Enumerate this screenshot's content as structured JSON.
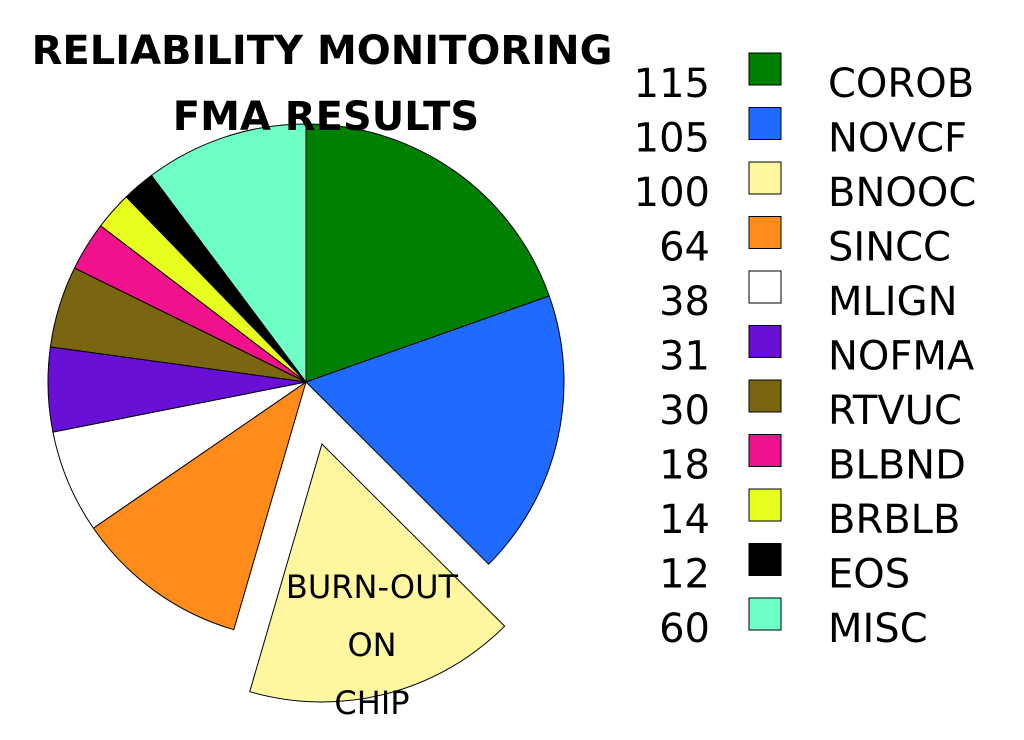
{
  "chart_data": {
    "type": "pie",
    "title_lines": [
      "RELIABILITY MONITORING",
      "FMA RESULTS"
    ],
    "slices": [
      {
        "label": "COROB",
        "value": 115,
        "color": "#008000"
      },
      {
        "label": "NOVCF",
        "value": 105,
        "color": "#1f6bff"
      },
      {
        "label": "BNOOC",
        "value": 100,
        "color": "#fff7a0",
        "exploded": true
      },
      {
        "label": "SINCC",
        "value": 64,
        "color": "#ff8c1a"
      },
      {
        "label": "MLIGN",
        "value": 38,
        "color": "#ffffff"
      },
      {
        "label": "NOFMA",
        "value": 31,
        "color": "#6a0fd6"
      },
      {
        "label": "RTVUC",
        "value": 30,
        "color": "#7a6610"
      },
      {
        "label": "BLBND",
        "value": 18,
        "color": "#f0128c"
      },
      {
        "label": "BRBLB",
        "value": 14,
        "color": "#e6ff1f"
      },
      {
        "label": "EOS",
        "value": 12,
        "color": "#000000"
      },
      {
        "label": "MISC",
        "value": 60,
        "color": "#6dffc6"
      }
    ],
    "annotation_lines": [
      "BURN-OUT",
      "ON",
      "CHIP"
    ],
    "legend_placement": "right"
  }
}
